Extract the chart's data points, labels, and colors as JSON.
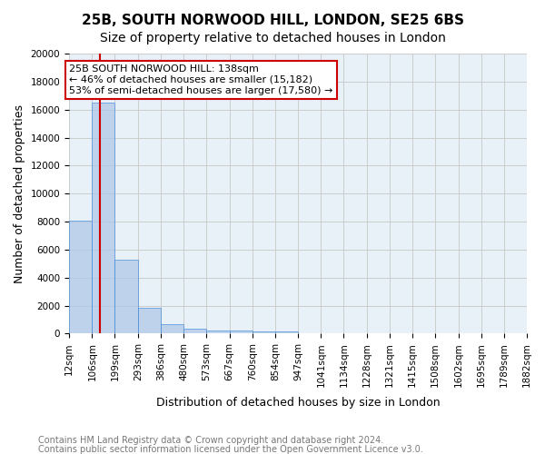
{
  "title1": "25B, SOUTH NORWOOD HILL, LONDON, SE25 6BS",
  "title2": "Size of property relative to detached houses in London",
  "xlabel": "Distribution of detached houses by size in London",
  "ylabel": "Number of detached properties",
  "footnote1": "Contains HM Land Registry data © Crown copyright and database right 2024.",
  "footnote2": "Contains public sector information licensed under the Open Government Licence v3.0.",
  "bin_labels": [
    "12sqm",
    "106sqm",
    "199sqm",
    "293sqm",
    "386sqm",
    "480sqm",
    "573sqm",
    "667sqm",
    "760sqm",
    "854sqm",
    "947sqm",
    "1041sqm",
    "1134sqm",
    "1228sqm",
    "1321sqm",
    "1415sqm",
    "1508sqm",
    "1602sqm",
    "1695sqm",
    "1789sqm",
    "1882sqm"
  ],
  "bin_edges": [
    12,
    106,
    199,
    293,
    386,
    480,
    573,
    667,
    760,
    854,
    947,
    1041,
    1134,
    1228,
    1321,
    1415,
    1508,
    1602,
    1695,
    1789,
    1882
  ],
  "bar_heights": [
    8100,
    16500,
    5300,
    1850,
    700,
    330,
    250,
    200,
    180,
    160,
    0,
    0,
    0,
    0,
    0,
    0,
    0,
    0,
    0,
    0
  ],
  "bar_color": "#aec6e8",
  "bar_edge_color": "#4a90d9",
  "bar_alpha": 0.7,
  "red_line_x": 138,
  "annotation_text": "25B SOUTH NORWOOD HILL: 138sqm\n← 46% of detached houses are smaller (15,182)\n53% of semi-detached houses are larger (17,580) →",
  "annotation_box_color": "#ffffff",
  "annotation_box_edge_color": "#cc0000",
  "annotation_text_color": "#000000",
  "red_line_color": "#cc0000",
  "ylim": [
    0,
    20000
  ],
  "yticks": [
    0,
    2000,
    4000,
    6000,
    8000,
    10000,
    12000,
    14000,
    16000,
    18000,
    20000
  ],
  "grid_color": "#cccccc",
  "bg_color": "#e8f0f8",
  "title1_fontsize": 11,
  "title2_fontsize": 10,
  "xlabel_fontsize": 9,
  "ylabel_fontsize": 9,
  "tick_fontsize": 7.5,
  "annot_fontsize": 8,
  "footnote_fontsize": 7
}
